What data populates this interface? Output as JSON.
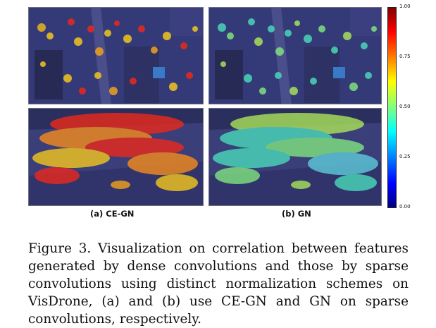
{
  "colorbar": {
    "ticks": [
      "1.00",
      "0.75",
      "0.50",
      "0.25",
      "0.00"
    ],
    "colormap": "jet"
  },
  "subfigures": [
    {
      "label": "(a) CE-GN",
      "scene_top": "aerial city street view with heatmap overlay",
      "scene_bottom": "oblique crowd street view with heatmap overlay",
      "dominant_heat": "red-orange"
    },
    {
      "label": "(b) GN",
      "scene_top": "aerial city street view with heatmap overlay",
      "scene_bottom": "oblique crowd street view with heatmap overlay",
      "dominant_heat": "green-cyan"
    }
  ],
  "caption": "Figure 3. Visualization on correlation between features generated by dense convolutions and those by sparse convolutions using distinct normalization schemes on VisDrone, (a) and (b) use CE-GN and GN on sparse convolutions, respectively.",
  "colors": {
    "scene_base": "#343a78",
    "heat_high": "#e8291c",
    "heat_mid": "#f0c51f",
    "heat_low": "#49d6b8"
  }
}
